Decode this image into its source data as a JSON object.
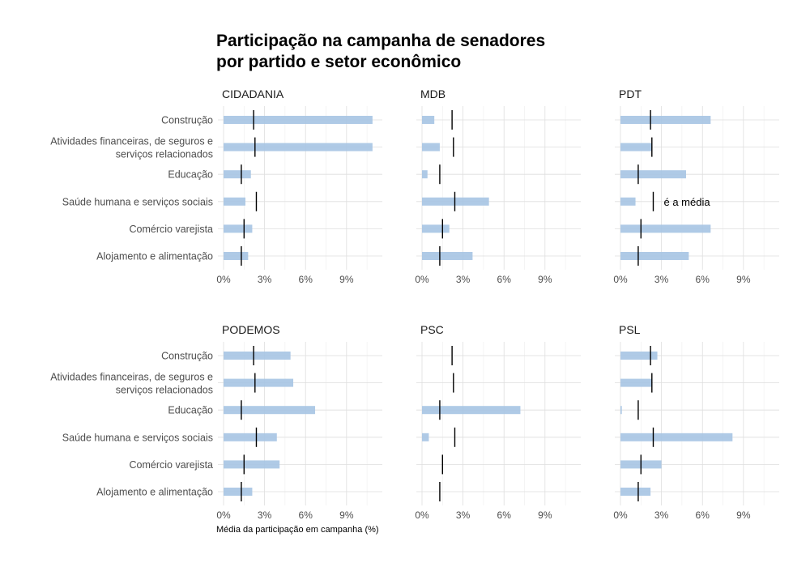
{
  "chart_data": {
    "type": "bar",
    "orientation": "horizontal",
    "title_lines": [
      "Participação na campanha de senadores",
      "por partido e setor econômico"
    ],
    "xlabel": "Média da participação em campanha (%)",
    "xlim": [
      0,
      11.5
    ],
    "xticks": [
      0,
      3,
      6,
      9
    ],
    "xtick_labels": [
      "0%",
      "3%",
      "6%",
      "9%"
    ],
    "grid": true,
    "categories": [
      [
        "Construção"
      ],
      [
        "Atividades financeiras, de seguros e",
        "serviços relacionados"
      ],
      [
        "Educação"
      ],
      [
        "Saúde humana e serviços sociais"
      ],
      [
        "Comércio varejista"
      ],
      [
        "Alojamento e alimentação"
      ]
    ],
    "annotation": "é a média",
    "annotation_panel": "PDT",
    "panels": [
      {
        "name": "CIDADANIA",
        "values": [
          10.9,
          10.9,
          2.0,
          1.6,
          2.1,
          1.8
        ],
        "means": [
          2.2,
          2.3,
          1.3,
          2.4,
          1.5,
          1.3
        ]
      },
      {
        "name": "MDB",
        "values": [
          0.9,
          1.3,
          0.4,
          4.9,
          2.0,
          3.7
        ],
        "means": [
          2.2,
          2.3,
          1.3,
          2.4,
          1.5,
          1.3
        ]
      },
      {
        "name": "PDT",
        "values": [
          6.6,
          2.3,
          4.8,
          1.1,
          6.6,
          5.0
        ],
        "means": [
          2.2,
          2.3,
          1.3,
          2.4,
          1.5,
          1.3
        ]
      },
      {
        "name": "PODEMOS",
        "values": [
          4.9,
          5.1,
          6.7,
          3.9,
          4.1,
          2.1
        ],
        "means": [
          2.2,
          2.3,
          1.3,
          2.4,
          1.5,
          1.3
        ]
      },
      {
        "name": "PSC",
        "values": [
          0,
          0,
          7.2,
          0.5,
          0,
          0
        ],
        "means": [
          2.2,
          2.3,
          1.3,
          2.4,
          1.5,
          1.3
        ]
      },
      {
        "name": "PSL",
        "values": [
          2.7,
          2.3,
          0.1,
          8.2,
          3.0,
          2.2
        ],
        "means": [
          2.2,
          2.3,
          1.3,
          2.4,
          1.5,
          1.3
        ]
      }
    ],
    "colors": {
      "bar": "#a6c4e3",
      "mean": "#000000",
      "grid": "#dedede"
    }
  }
}
